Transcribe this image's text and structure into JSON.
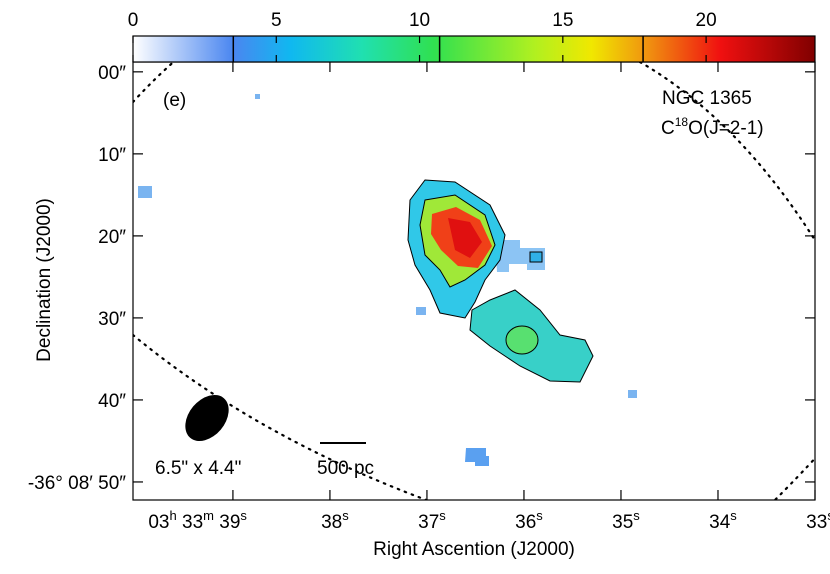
{
  "chart_data": {
    "type": "map",
    "annotations": {
      "panel": "(e)",
      "object": "NGC 1365",
      "line": {
        "prefix": "C",
        "sup": "18",
        "suffix": "O(J=2-1)"
      },
      "beam": "6.5\" x 4.4\"",
      "scale_bar": "500 pc"
    },
    "x_label": "Right Ascention (J2000)",
    "y_label": "Declination (J2000)",
    "xlim": [
      40.03,
      33
    ],
    "xticks": [
      {
        "value": 39,
        "label": [
          [
            "03",
            "h"
          ],
          [
            " 33",
            "m"
          ],
          [
            " 39",
            "s"
          ]
        ]
      },
      {
        "value": 38,
        "label": [
          [
            "38",
            "s"
          ]
        ]
      },
      {
        "value": 37,
        "label": [
          [
            "37",
            "s"
          ]
        ]
      },
      {
        "value": 36,
        "label": [
          [
            "36",
            "s"
          ]
        ]
      },
      {
        "value": 35,
        "label": [
          [
            "35",
            "s"
          ]
        ]
      },
      {
        "value": 34,
        "label": [
          [
            "34",
            "s"
          ]
        ]
      },
      {
        "value": 33,
        "label": [
          [
            "33",
            "s"
          ]
        ]
      }
    ],
    "ylim": [
      -1.2,
      52.2
    ],
    "yticks": [
      {
        "value": 0,
        "label": "00″"
      },
      {
        "value": 10,
        "label": "10″"
      },
      {
        "value": 20,
        "label": "20″"
      },
      {
        "value": 30,
        "label": "30″"
      },
      {
        "value": 40,
        "label": "40″"
      },
      {
        "value": 50,
        "label": "-36° 08′ 50″"
      }
    ],
    "colorbar": {
      "lim": [
        0,
        23.8
      ],
      "ticks": [
        0,
        5,
        10,
        15,
        20
      ],
      "contour_levels": [
        3.5,
        10.7,
        17.8
      ],
      "colormap": [
        {
          "value": 0,
          "color": "#ffffff"
        },
        {
          "value": 3.5,
          "color": "#4a86f0"
        },
        {
          "value": 5.5,
          "color": "#10b8f0"
        },
        {
          "value": 8,
          "color": "#20e0b0"
        },
        {
          "value": 10.5,
          "color": "#30e050"
        },
        {
          "value": 14,
          "color": "#b0f020"
        },
        {
          "value": 16,
          "color": "#f0e800"
        },
        {
          "value": 18,
          "color": "#f09010"
        },
        {
          "value": 20.5,
          "color": "#f01010"
        },
        {
          "value": 23.8,
          "color": "#800000"
        }
      ]
    }
  }
}
